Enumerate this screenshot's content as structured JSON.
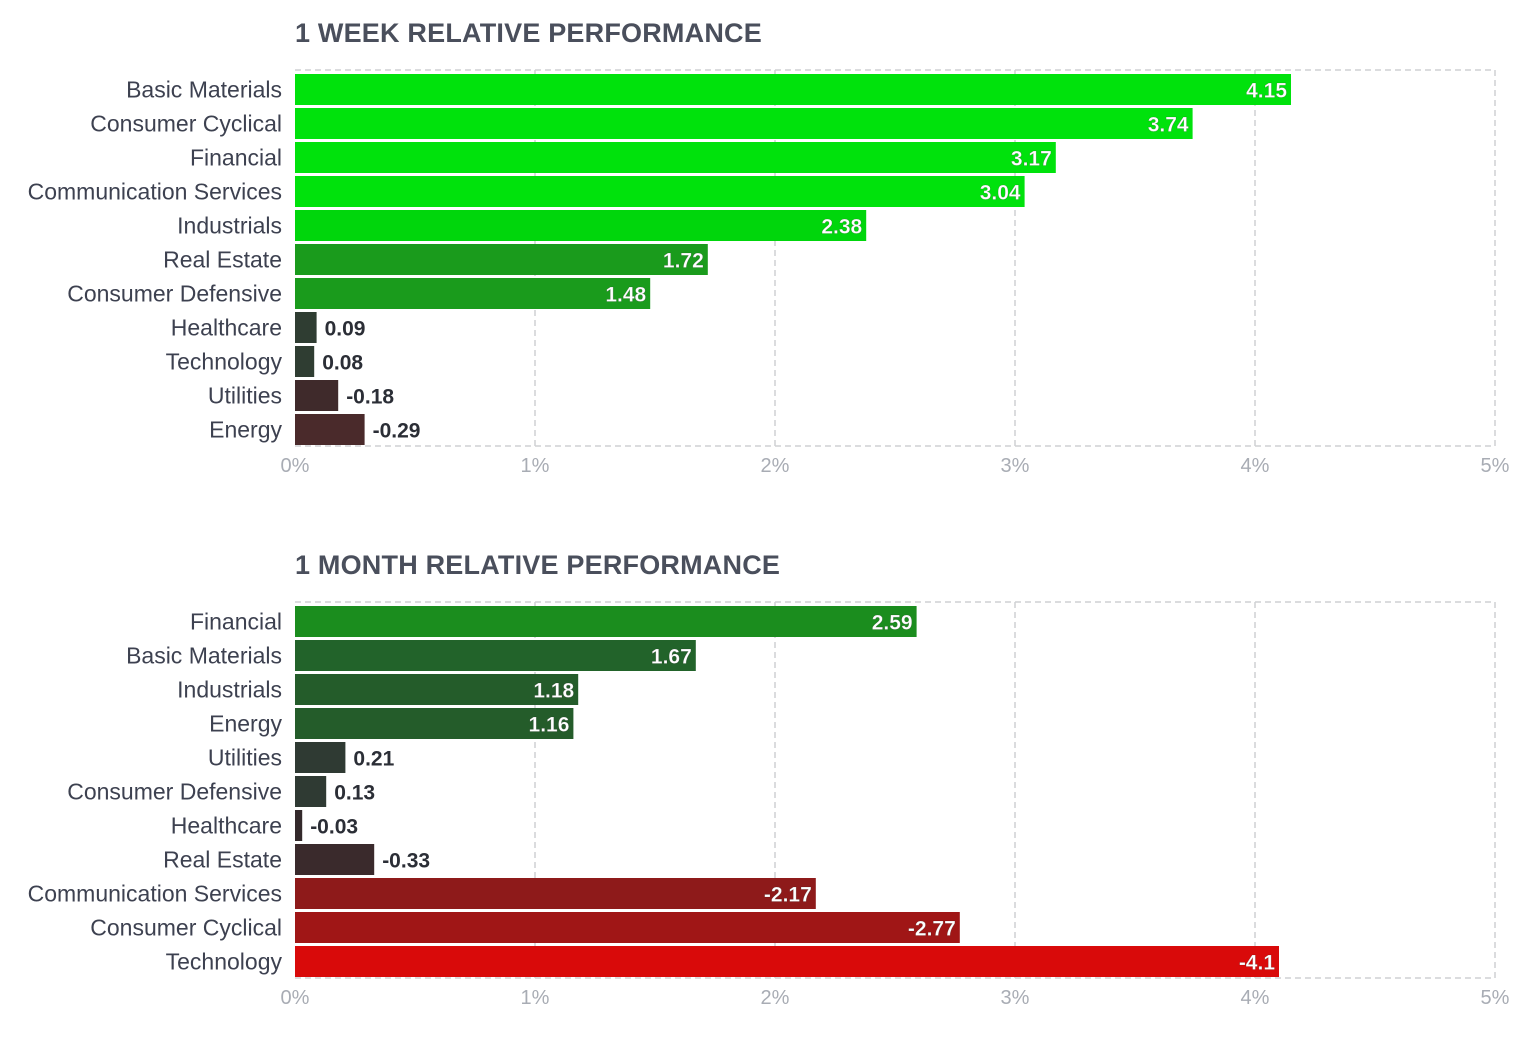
{
  "chart_data": [
    {
      "type": "bar",
      "orientation": "horizontal",
      "title": "1 WEEK RELATIVE PERFORMANCE",
      "categories": [
        "Basic Materials",
        "Consumer Cyclical",
        "Financial",
        "Communication Services",
        "Industrials",
        "Real Estate",
        "Consumer Defensive",
        "Healthcare",
        "Technology",
        "Utilities",
        "Energy"
      ],
      "values": [
        4.15,
        3.74,
        3.17,
        3.04,
        2.38,
        1.72,
        1.48,
        0.09,
        0.08,
        -0.18,
        -0.29
      ],
      "value_labels": [
        "4.15",
        "3.74",
        "3.17",
        "3.04",
        "2.38",
        "1.72",
        "1.48",
        "0.09",
        "0.08",
        "-0.18",
        "-0.29"
      ],
      "colors": [
        "#00e20c",
        "#00e20c",
        "#00e20c",
        "#00e20c",
        "#00d60c",
        "#1a9b1c",
        "#1a9b1c",
        "#2f3d32",
        "#2f3d32",
        "#3f2a2b",
        "#4a2a2b"
      ],
      "xlim": [
        0,
        5
      ],
      "xticks": [
        "0%",
        "1%",
        "2%",
        "3%",
        "4%",
        "5%"
      ],
      "bar_length": "absolute value",
      "grid": true,
      "xlabel": "",
      "ylabel": ""
    },
    {
      "type": "bar",
      "orientation": "horizontal",
      "title": "1 MONTH RELATIVE PERFORMANCE",
      "categories": [
        "Financial",
        "Basic Materials",
        "Industrials",
        "Energy",
        "Utilities",
        "Consumer Defensive",
        "Healthcare",
        "Real Estate",
        "Communication Services",
        "Consumer Cyclical",
        "Technology"
      ],
      "values": [
        2.59,
        1.67,
        1.18,
        1.16,
        0.21,
        0.13,
        -0.03,
        -0.33,
        -2.17,
        -2.77,
        -4.1
      ],
      "value_labels": [
        "2.59",
        "1.67",
        "1.18",
        "1.16",
        "0.21",
        "0.13",
        "-0.03",
        "-0.33",
        "-2.17",
        "-2.77",
        "-4.1"
      ],
      "colors": [
        "#1b8d1e",
        "#22632a",
        "#245c2a",
        "#245c2a",
        "#2f3a33",
        "#2f3a33",
        "#33292b",
        "#3a2a2c",
        "#8e1a1a",
        "#a01616",
        "#d90a0a"
      ],
      "xlim": [
        0,
        5
      ],
      "xticks": [
        "0%",
        "1%",
        "2%",
        "3%",
        "4%",
        "5%"
      ],
      "bar_length": "absolute value",
      "grid": true,
      "xlabel": "",
      "ylabel": ""
    }
  ]
}
